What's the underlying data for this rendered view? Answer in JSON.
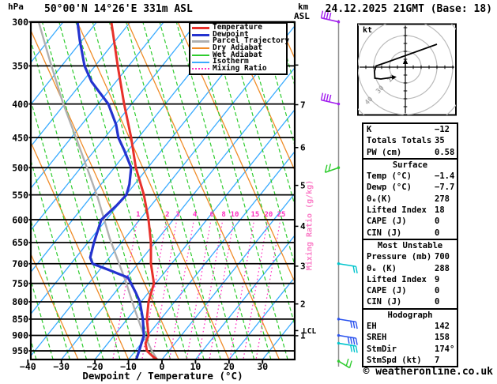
{
  "header": {
    "pressure_unit": "hPa",
    "station": "50°00'N 14°26'E 331m ASL",
    "km_line1": "km",
    "km_line2": "ASL",
    "datetime": "24.12.2025 21GMT (Base: 18)"
  },
  "footer": {
    "credit": "© weatheronline.co.uk"
  },
  "legend": [
    {
      "label": "Temperature",
      "color": "#e8312b",
      "style": "solid"
    },
    {
      "label": "Dewpoint",
      "color": "#2433cf",
      "style": "solid"
    },
    {
      "label": "Parcel Trajectory",
      "color": "#b0b0b0",
      "style": "solid"
    },
    {
      "label": "Dry Adiabat",
      "color": "#f08c28",
      "style": "solid-thin"
    },
    {
      "label": "Wet Adiabat",
      "color": "#2fcc2f",
      "style": "solid-thin"
    },
    {
      "label": "Isotherm",
      "color": "#3aabff",
      "style": "solid-thin"
    },
    {
      "label": "Mixing Ratio",
      "color": "#ff30c0",
      "style": "dotted"
    }
  ],
  "colors": {
    "temperature": "#e8312b",
    "dewpoint": "#2433cf",
    "parcel": "#b0b0b0",
    "dry_adiabat": "#f08c28",
    "wet_adiabat": "#2fcc2f",
    "isotherm": "#3aabff",
    "mixing_ratio": "#ff30c0",
    "grid": "#000000",
    "wind_staff": "#909090",
    "barb_purple": "#a21fee",
    "barb_cyan": "#00c5cd",
    "barb_blue": "#2a52ee",
    "barb_green": "#2fcc2f"
  },
  "axes": {
    "pressure_ticks": [
      300,
      350,
      400,
      450,
      500,
      550,
      600,
      650,
      700,
      750,
      800,
      850,
      900,
      950
    ],
    "temp_ticks": [
      -40,
      -30,
      -20,
      -10,
      0,
      10,
      20,
      30
    ],
    "xlabel": "Dewpoint / Temperature (°C)",
    "km_ticks": [
      {
        "label": "",
        "pressure": 349
      },
      {
        "label": "7",
        "pressure": 401
      },
      {
        "label": "6",
        "pressure": 466
      },
      {
        "label": "5",
        "pressure": 532
      },
      {
        "label": "4",
        "pressure": 614
      },
      {
        "label": "3",
        "pressure": 706
      },
      {
        "label": "2",
        "pressure": 806
      },
      {
        "label": "1",
        "pressure": 901
      }
    ],
    "lcl_label": "LCL",
    "lcl_pressure": 885,
    "mixing_axis_label": "Mixing Ratio (g/kg)",
    "mixing_labels": [
      {
        "value": "1",
        "x_degC": -7.1
      },
      {
        "value": "2",
        "x_degC": 1.6
      },
      {
        "value": "3",
        "x_degC": 4.7
      },
      {
        "value": "4",
        "x_degC": 9.8
      },
      {
        "value": "6",
        "x_degC": 14.9
      },
      {
        "value": "8",
        "x_degC": 18.4
      },
      {
        "value": "10",
        "x_degC": 21.7
      },
      {
        "value": "15",
        "x_degC": 27.8
      },
      {
        "value": "20",
        "x_degC": 31.8
      },
      {
        "value": "25",
        "x_degC": 35.6
      }
    ]
  },
  "chart_data": {
    "type": "skewt-sounding",
    "title": "50°00'N 14°26'E 331m ASL  24.12.2025 21GMT (Base: 18)",
    "pressure_log_scale": true,
    "pressure_range_hPa": [
      300,
      980
    ],
    "temp_axis_range_degC": [
      -40,
      38
    ],
    "note": "points are [pressure_hPa, skewed_plot_position_degC_on_bottom_axis]",
    "series": [
      {
        "name": "Temperature",
        "color": "#e8312b",
        "points": [
          [
            300,
            -15.1
          ],
          [
            350,
            -13.2
          ],
          [
            400,
            -11.3
          ],
          [
            450,
            -9.2
          ],
          [
            500,
            -7.8
          ],
          [
            550,
            -5.4
          ],
          [
            600,
            -4.0
          ],
          [
            650,
            -3.3
          ],
          [
            700,
            -3.3
          ],
          [
            750,
            -2.4
          ],
          [
            800,
            -4.0
          ],
          [
            850,
            -4.5
          ],
          [
            900,
            -4.0
          ],
          [
            925,
            -4.9
          ],
          [
            950,
            -4.5
          ],
          [
            968,
            -2.8
          ],
          [
            980,
            -1.4
          ]
        ]
      },
      {
        "name": "Dewpoint",
        "color": "#2433cf",
        "points": [
          [
            300,
            -25.2
          ],
          [
            320,
            -24.5
          ],
          [
            350,
            -23.1
          ],
          [
            370,
            -21.0
          ],
          [
            400,
            -16.0
          ],
          [
            430,
            -13.7
          ],
          [
            450,
            -13.0
          ],
          [
            470,
            -11.3
          ],
          [
            500,
            -9.2
          ],
          [
            530,
            -9.7
          ],
          [
            550,
            -10.6
          ],
          [
            570,
            -13.4
          ],
          [
            600,
            -18.1
          ],
          [
            650,
            -20.3
          ],
          [
            685,
            -21.4
          ],
          [
            700,
            -20.7
          ],
          [
            715,
            -16.0
          ],
          [
            735,
            -10.1
          ],
          [
            775,
            -7.8
          ],
          [
            800,
            -6.6
          ],
          [
            850,
            -5.7
          ],
          [
            900,
            -5.4
          ],
          [
            950,
            -6.8
          ],
          [
            980,
            -7.7
          ]
        ]
      },
      {
        "name": "Parcel Trajectory",
        "color": "#b0b0b0",
        "points": [
          [
            300,
            -36.8
          ],
          [
            343,
            -33.5
          ],
          [
            399,
            -29.5
          ],
          [
            452,
            -25.5
          ],
          [
            508,
            -21.9
          ],
          [
            557,
            -19.1
          ],
          [
            640,
            -15.6
          ],
          [
            695,
            -13.0
          ],
          [
            745,
            -10.8
          ],
          [
            820,
            -8.2
          ],
          [
            890,
            -5.7
          ],
          [
            948,
            -3.1
          ],
          [
            980,
            -1.4
          ]
        ]
      }
    ]
  },
  "wind_barbs": [
    {
      "pressure": 300,
      "color": "#a21fee",
      "side": "left",
      "ticks": 4
    },
    {
      "pressure": 400,
      "color": "#a21fee",
      "side": "left",
      "ticks": 4
    },
    {
      "pressure": 500,
      "color": "#2fcc2f",
      "side": "check-left",
      "ticks": 2
    },
    {
      "pressure": 700,
      "color": "#00c5cd",
      "side": "right",
      "ticks": 2
    },
    {
      "pressure": 850,
      "color": "#2a52ee",
      "side": "right",
      "ticks": 3
    },
    {
      "pressure": 900,
      "color": "#2a52ee",
      "side": "right",
      "ticks": 4
    },
    {
      "pressure": 925,
      "color": "#00c5cd",
      "side": "right",
      "ticks": 3
    },
    {
      "pressure": 985,
      "color": "#2fcc2f",
      "side": "check-right",
      "ticks": 2
    }
  ],
  "hodograph": {
    "unit_label": "kt",
    "ring_labels": [
      "10",
      "30",
      "40"
    ],
    "trace_kt": [
      [
        20,
        14.5
      ],
      [
        -12,
        3
      ],
      [
        -18.5,
        0.8
      ],
      [
        -19.5,
        -2.5
      ],
      [
        -19.3,
        -7
      ],
      [
        -15.5,
        -7.5
      ],
      [
        -8.5,
        -6.5
      ]
    ],
    "storm_motion": {
      "dir_deg": 174,
      "speed_kt": 7
    }
  },
  "table": {
    "sections": [
      {
        "title": null,
        "rows": [
          [
            "K",
            "−12"
          ],
          [
            "Totals Totals",
            "35"
          ],
          [
            "PW (cm)",
            "0.58"
          ]
        ]
      },
      {
        "title": "Surface",
        "rows": [
          [
            "Temp (°C)",
            "−1.4"
          ],
          [
            "Dewp (°C)",
            "−7.7"
          ],
          [
            "θₑ(K)",
            "278"
          ],
          [
            "Lifted Index",
            "18"
          ],
          [
            "CAPE (J)",
            "0"
          ],
          [
            "CIN (J)",
            "0"
          ]
        ]
      },
      {
        "title": "Most Unstable",
        "rows": [
          [
            "Pressure (mb)",
            "700"
          ],
          [
            "θₑ (K)",
            "288"
          ],
          [
            "Lifted Index",
            "9"
          ],
          [
            "CAPE (J)",
            "0"
          ],
          [
            "CIN (J)",
            "0"
          ]
        ]
      },
      {
        "title": "Hodograph",
        "rows": [
          [
            "EH",
            "142"
          ],
          [
            "SREH",
            "158"
          ],
          [
            "StmDir",
            "174°"
          ],
          [
            "StmSpd (kt)",
            "7"
          ]
        ]
      }
    ]
  }
}
